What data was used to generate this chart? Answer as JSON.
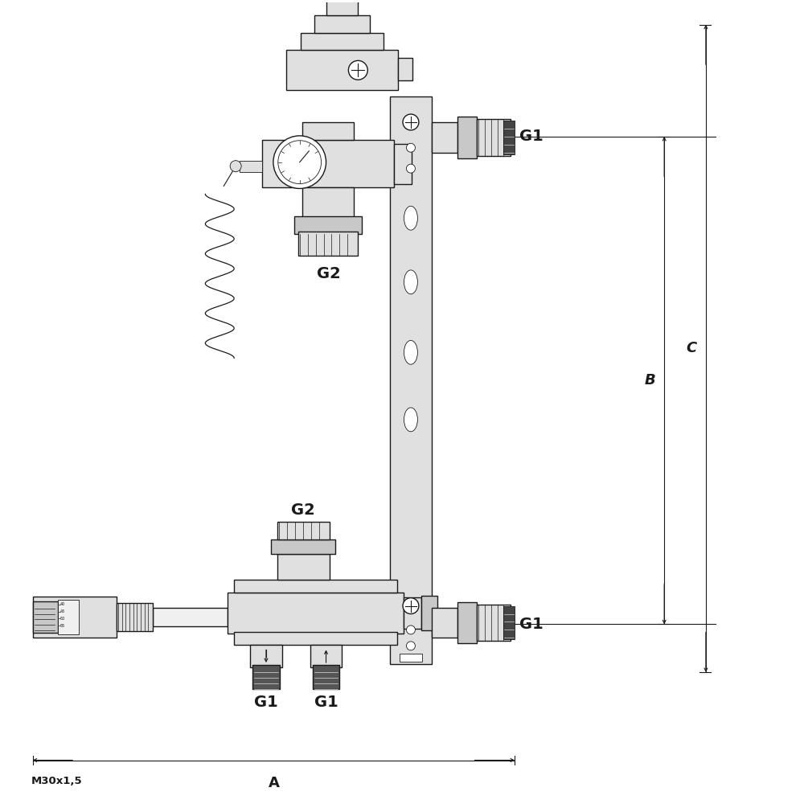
{
  "bg_color": "#ffffff",
  "lc": "#1a1a1a",
  "fc_light": "#f0f0f0",
  "fc_mid": "#e0e0e0",
  "fc_dark": "#c8c8c8",
  "fc_white": "#ffffff",
  "lw_main": 1.0,
  "lw_thin": 0.6,
  "lw_dim": 0.8,
  "labels": {
    "G1_top": "G1",
    "G1_bot_right": "G1",
    "G2_top": "G2",
    "G2_bot": "G2",
    "G1_bot1": "G1",
    "G1_bot2": "G1",
    "A": "A",
    "B": "B",
    "C": "C",
    "M30": "M30x1,5"
  }
}
